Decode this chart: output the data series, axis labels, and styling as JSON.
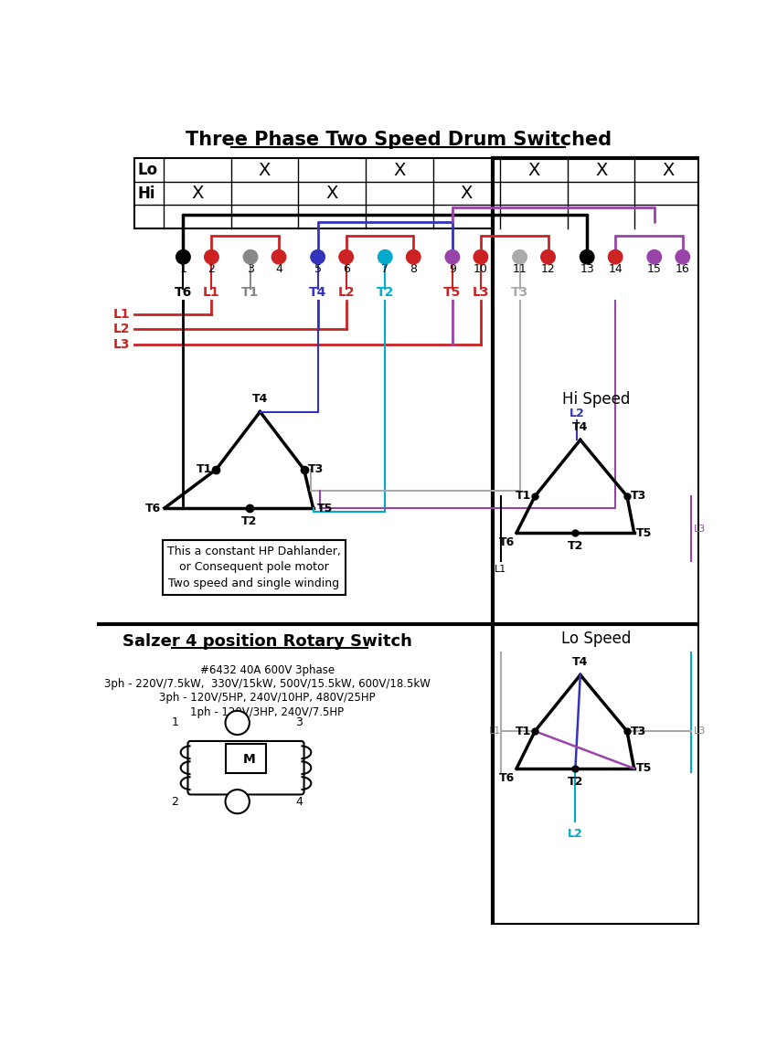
{
  "title": "Three Phase Two Speed Drum Switched",
  "background": "#ffffff",
  "lo_cols": [
    2,
    4,
    6,
    7,
    8
  ],
  "hi_cols": [
    1,
    3,
    5
  ],
  "terminal_colors": [
    "#000000",
    "#cc2222",
    "#888888",
    "#cc2222",
    "#3333bb",
    "#cc2222",
    "#00aacc",
    "#cc2222",
    "#9944aa",
    "#cc2222",
    "#aaaaaa",
    "#cc2222",
    "#000000",
    "#cc2222",
    "#9944aa",
    "#9944aa"
  ],
  "hi_speed_title": "Hi Speed",
  "lo_speed_title": "Lo Speed",
  "salzer_title": "Salzer 4 position Rotary Switch",
  "salzer_lines": [
    "#6432 40A 600V 3phase",
    "3ph - 220V/7.5kW,  330V/15kW, 500V/15.5kW, 600V/18.5kW",
    "3ph - 120V/5HP, 240V/10HP, 480V/25HP",
    "1ph - 120V/3HP, 240V/7.5HP"
  ],
  "dahlander_text": [
    "This a constant HP Dahlander,",
    "or Consequent pole motor",
    "Two speed and single winding"
  ]
}
